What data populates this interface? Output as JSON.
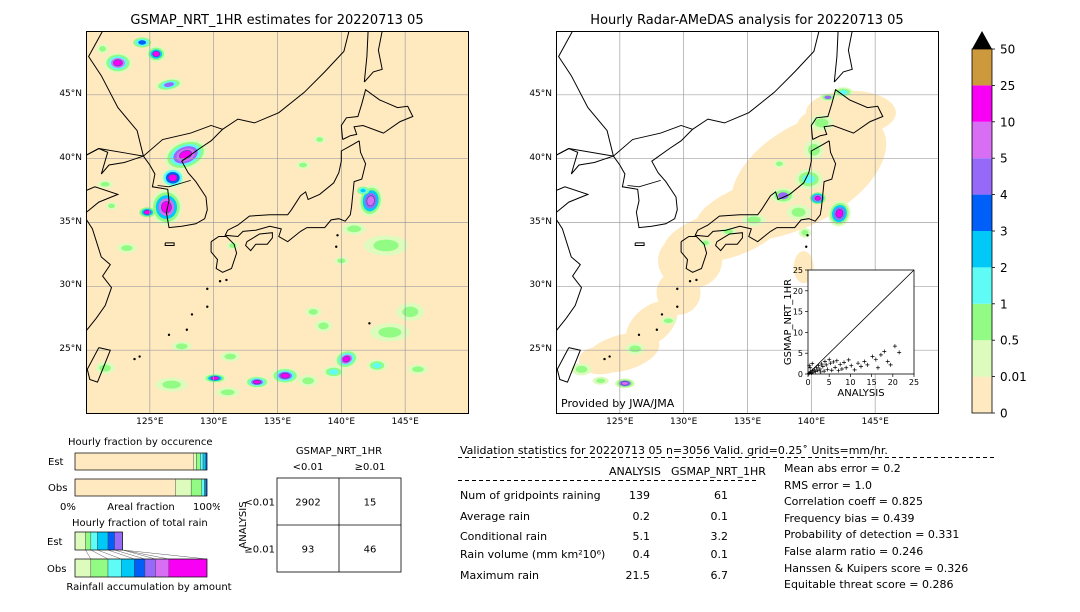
{
  "colors": {
    "land": "#ffe9bf",
    "sea": "#ffffff",
    "grid": "#a0a0a0",
    "coast": "#000000",
    "colorbar": [
      "#fee9c1",
      "#dcfbbd",
      "#92fb84",
      "#5efcf5",
      "#00c9f8",
      "#005ff8",
      "#9769f8",
      "#d86ef4",
      "#f800f4",
      "#cc9a3c",
      "#000000"
    ]
  },
  "map_left": {
    "title": "GSMAP_NRT_1HR estimates for 20220713 05",
    "lat_labels": [
      "45°N",
      "40°N",
      "35°N",
      "30°N",
      "25°N"
    ],
    "lon_labels": [
      "125°E",
      "130°E",
      "135°E",
      "140°E",
      "145°E"
    ]
  },
  "map_right": {
    "title": "Hourly Radar-AMeDAS analysis for 20220713 05",
    "lat_labels": [
      "45°N",
      "40°N",
      "35°N",
      "30°N",
      "25°N"
    ],
    "lon_labels": [
      "125°E",
      "130°E",
      "135°E",
      "140°E",
      "145°E"
    ],
    "credit": "Provided by JWA/JMA"
  },
  "colorbar": {
    "labels": [
      "50",
      "25",
      "10",
      "5",
      "4",
      "3",
      "2",
      "1",
      "0.5",
      "0.01",
      "0"
    ]
  },
  "chart_data": [
    {
      "type": "scatter",
      "title": "",
      "xlabel": "ANALYSIS",
      "ylabel": "GSMAP_NRT_1HR",
      "xlim": [
        0,
        25
      ],
      "ylim": [
        0,
        25
      ],
      "xticks": [
        "0",
        "5",
        "10",
        "15",
        "20",
        "25"
      ],
      "yticks": [
        "0",
        "5",
        "10",
        "15",
        "20",
        "25"
      ],
      "points": [
        [
          0.2,
          0.1
        ],
        [
          0.4,
          0.3
        ],
        [
          0.6,
          0.5
        ],
        [
          0.8,
          0.2
        ],
        [
          1.0,
          0.8
        ],
        [
          1.2,
          0.4
        ],
        [
          1.5,
          1.0
        ],
        [
          1.8,
          0.6
        ],
        [
          2.0,
          1.5
        ],
        [
          2.3,
          0.9
        ],
        [
          2.5,
          2.0
        ],
        [
          2.8,
          1.2
        ],
        [
          3.0,
          0.5
        ],
        [
          3.2,
          2.4
        ],
        [
          3.5,
          1.8
        ],
        [
          3.8,
          0.7
        ],
        [
          4.0,
          3.0
        ],
        [
          4.3,
          2.2
        ],
        [
          4.6,
          1.1
        ],
        [
          5.0,
          3.5
        ],
        [
          5.3,
          2.6
        ],
        [
          5.6,
          0.9
        ],
        [
          6.0,
          2.9
        ],
        [
          6.4,
          1.6
        ],
        [
          6.8,
          3.2
        ],
        [
          7.2,
          0.8
        ],
        [
          7.6,
          2.3
        ],
        [
          8.0,
          1.2
        ],
        [
          8.5,
          2.8
        ],
        [
          9.0,
          1.5
        ],
        [
          9.6,
          3.4
        ],
        [
          10.2,
          2.0
        ],
        [
          11.0,
          1.0
        ],
        [
          11.8,
          2.6
        ],
        [
          12.5,
          1.8
        ],
        [
          13.3,
          3.0
        ],
        [
          14.0,
          2.2
        ],
        [
          15.2,
          4.2
        ],
        [
          16.0,
          3.5
        ],
        [
          16.5,
          1.5
        ],
        [
          17.2,
          4.6
        ],
        [
          18.0,
          5.4
        ],
        [
          18.8,
          3.0
        ],
        [
          19.5,
          2.2
        ],
        [
          21.5,
          5.2
        ],
        [
          20.5,
          6.7
        ],
        [
          0.5,
          1.5
        ],
        [
          1.0,
          2.5
        ],
        [
          0.3,
          2.0
        ]
      ]
    },
    {
      "type": "bar",
      "title": "Hourly fraction by occurence",
      "categories": [
        "Est",
        "Obs"
      ],
      "xlabel": "Areal fraction",
      "xticks": [
        "0%",
        "100%"
      ],
      "series": [
        {
          "values": [
            0.9,
            0.76
          ]
        },
        {
          "values": [
            0.02,
            0.12
          ]
        },
        {
          "values": [
            0.03,
            0.08
          ]
        },
        {
          "values": [
            0.02,
            0.02
          ]
        },
        {
          "values": [
            0.02,
            0.01
          ]
        },
        {
          "values": [
            0.01,
            0.01
          ]
        }
      ]
    },
    {
      "type": "bar",
      "title": "Hourly fraction of total rain",
      "categories": [
        "Est",
        "Obs"
      ],
      "xlabel": "Rainfall accumulation by amount",
      "series": [
        {
          "values": [
            0.08,
            0.12
          ]
        },
        {
          "values": [
            0.04,
            0.13
          ]
        },
        {
          "values": [
            0.05,
            0.1
          ]
        },
        {
          "values": [
            0.08,
            0.1
          ]
        },
        {
          "values": [
            0.05,
            0.08
          ]
        },
        {
          "values": [
            0.06,
            0.08
          ]
        },
        {
          "values": [
            0.0,
            0.1
          ]
        },
        {
          "values": [
            0.0,
            0.29
          ]
        }
      ]
    },
    {
      "type": "table",
      "title": "GSMAP_NRT_1HR",
      "col_headers": [
        "<0.01",
        "≥0.01"
      ],
      "row_axis_label": "ANALYSIS",
      "row_headers": [
        "<0.01",
        "≥0.01"
      ],
      "cells": [
        [
          "2902",
          "15"
        ],
        [
          "93",
          "46"
        ]
      ]
    }
  ],
  "validation": {
    "header": "Validation statistics for 20220713 05  n=3056 Valid. grid=0.25˚ Units=mm/hr.",
    "col_analysis": "ANALYSIS",
    "col_gsmap": "GSMAP_NRT_1HR",
    "rows": [
      {
        "label": "Num of gridpoints raining",
        "analysis": "139",
        "gsmap": "61"
      },
      {
        "label": "Average rain",
        "analysis": "0.2",
        "gsmap": "0.1"
      },
      {
        "label": "Conditional rain",
        "analysis": "5.1",
        "gsmap": "3.2"
      },
      {
        "label": "Rain volume (mm km²10⁶)",
        "analysis": "0.4",
        "gsmap": "0.1"
      },
      {
        "label": "Maximum rain",
        "analysis": "21.5",
        "gsmap": "6.7"
      }
    ],
    "scores": [
      "Mean abs error =    0.2",
      "RMS error =    1.0",
      "Correlation coeff =  0.825",
      "Frequency bias =  0.439",
      "Probability of detection =  0.331",
      "False alarm ratio =  0.246",
      "Hanssen & Kuipers score =  0.326",
      "Equitable threat score =  0.286"
    ]
  }
}
